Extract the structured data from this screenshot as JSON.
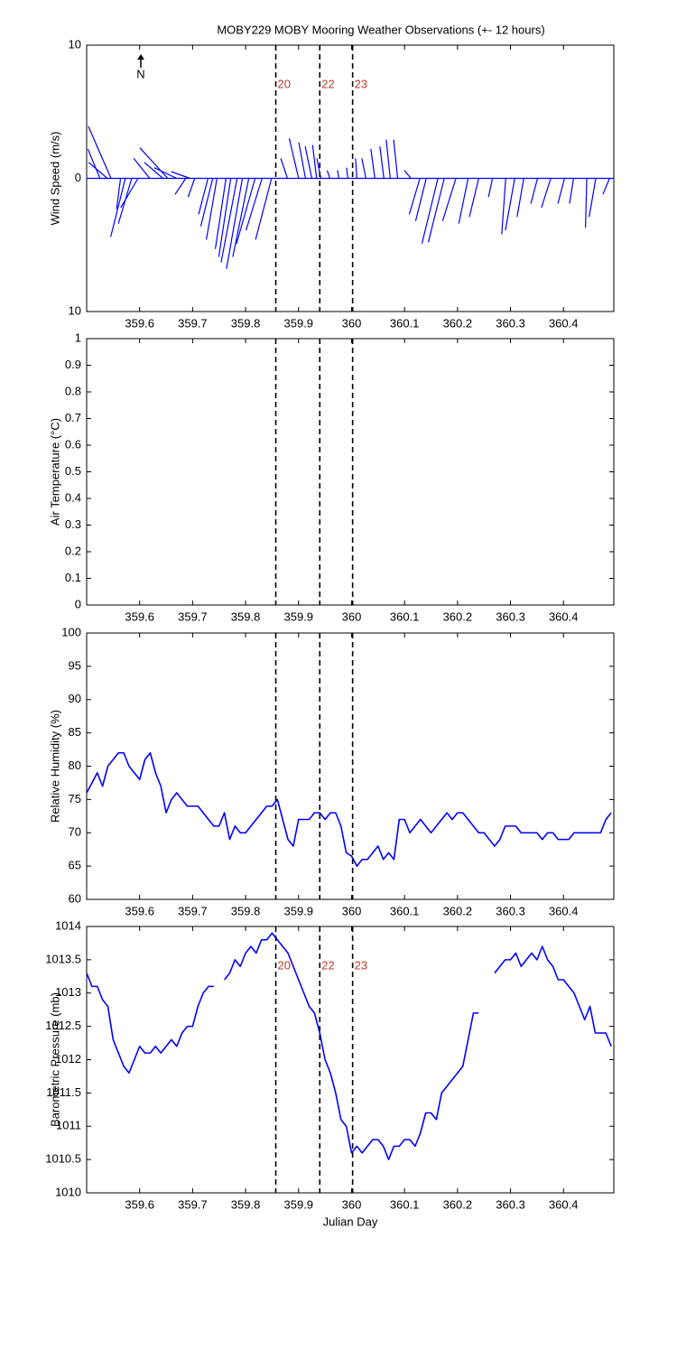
{
  "chart_data": [
    {
      "type": "stick",
      "title": "MOBY229 MOBY Mooring Weather Observations (+- 12 hours)",
      "ylabel": "Wind Speed (m/s)",
      "annotation": "N",
      "color": "#0000ff",
      "xlim": [
        359.5,
        360.495
      ],
      "xticks": [
        359.6,
        359.7,
        359.8,
        359.9,
        360,
        360.1,
        360.2,
        360.3,
        360.4
      ],
      "ylim": [
        -10,
        10
      ],
      "yticks": [
        {
          "value": -10,
          "label": "10"
        },
        0,
        10
      ],
      "vlines": [
        359.857,
        359.94,
        360.002
      ],
      "vline_labels": [
        "20",
        "22",
        "23"
      ],
      "x": [
        359.546,
        359.525,
        359.539,
        359.573,
        359.564,
        359.585,
        359.597,
        359.653,
        359.619,
        359.644,
        359.67,
        359.695,
        359.687,
        359.704,
        359.729,
        359.738,
        359.746,
        359.763,
        359.772,
        359.784,
        359.794,
        359.806,
        359.818,
        359.831,
        359.849,
        359.879,
        359.9,
        359.913,
        359.925,
        359.934,
        359.942,
        359.959,
        359.976,
        359.993,
        360.01,
        360.027,
        360.044,
        360.061,
        360.073,
        360.087,
        360.112,
        360.129,
        360.141,
        360.163,
        360.175,
        360.197,
        360.22,
        360.24,
        360.266,
        360.291,
        360.308,
        360.325,
        360.351,
        360.376,
        360.402,
        360.419,
        360.444,
        360.461,
        360.487
      ],
      "u": [
        -1.7,
        -0.9,
        -1.4,
        -1.1,
        -0.3,
        -1.0,
        -1.3,
        -2.1,
        -1.2,
        -1.4,
        -1.7,
        -1.4,
        -0.8,
        -0.5,
        -0.7,
        -0.9,
        -0.8,
        -0.8,
        -0.9,
        -1.2,
        -1.2,
        -1.2,
        -1.4,
        -1.2,
        -1.2,
        -0.5,
        -0.7,
        -0.5,
        -0.5,
        -0.3,
        -0.3,
        -0.2,
        -0.1,
        -0.1,
        -0.1,
        -0.3,
        -0.3,
        -0.3,
        -0.3,
        -0.3,
        -0.5,
        -0.8,
        -0.8,
        -1.2,
        -1.2,
        -1.0,
        -0.7,
        -0.7,
        -0.3,
        -0.3,
        -0.7,
        -0.5,
        -0.5,
        -0.7,
        -0.5,
        -0.3,
        -0.1,
        -0.5,
        -0.5
      ],
      "v": [
        3.9,
        2.2,
        1.2,
        -4.4,
        -2.3,
        -3.4,
        -2.2,
        2.3,
        1.5,
        1.2,
        0.8,
        0.5,
        -1.2,
        -1.4,
        -2.7,
        -3.6,
        -4.6,
        -5.3,
        -5.9,
        -6.3,
        -6.8,
        -5.9,
        -4.9,
        -3.9,
        -4.6,
        1.5,
        3.0,
        2.7,
        2.4,
        2.5,
        1.5,
        0.6,
        0.6,
        0.8,
        1.5,
        1.5,
        2.2,
        2.4,
        2.9,
        2.9,
        0.6,
        -2.7,
        -3.2,
        -4.9,
        -4.8,
        -3.2,
        -3.4,
        -2.9,
        -1.4,
        -4.2,
        -3.9,
        -2.9,
        -1.9,
        -2.2,
        -1.9,
        -1.9,
        -3.7,
        -2.9,
        -1.2
      ]
    },
    {
      "type": "line",
      "ylabel": "Air Temperature (°C)",
      "xlim": [
        359.5,
        360.495
      ],
      "xticks": [
        359.6,
        359.7,
        359.8,
        359.9,
        360,
        360.1,
        360.2,
        360.3,
        360.4
      ],
      "ylim": [
        0,
        1
      ],
      "yticks": [
        0,
        0.1,
        0.2,
        0.3,
        0.4,
        0.5,
        0.6,
        0.7,
        0.8,
        0.9,
        1
      ],
      "vlines": [
        359.857,
        359.94,
        360.002
      ]
    },
    {
      "type": "line",
      "ylabel": "Relative Humidity (%)",
      "color": "#0000ff",
      "xlim": [
        359.5,
        360.495
      ],
      "xticks": [
        359.6,
        359.7,
        359.8,
        359.9,
        360,
        360.1,
        360.2,
        360.3,
        360.4
      ],
      "ylim": [
        60,
        100
      ],
      "yticks": [
        60,
        65,
        70,
        75,
        80,
        85,
        90,
        95,
        100
      ],
      "vlines": [
        359.857,
        359.94,
        360.002
      ],
      "x": [
        359.5,
        359.51,
        359.52,
        359.53,
        359.54,
        359.55,
        359.56,
        359.57,
        359.58,
        359.59,
        359.6,
        359.61,
        359.62,
        359.63,
        359.64,
        359.65,
        359.66,
        359.67,
        359.68,
        359.69,
        359.7,
        359.71,
        359.72,
        359.73,
        359.74,
        359.75,
        359.76,
        359.77,
        359.78,
        359.79,
        359.8,
        359.81,
        359.82,
        359.83,
        359.84,
        359.85,
        359.86,
        359.87,
        359.88,
        359.89,
        359.9,
        359.91,
        359.92,
        359.93,
        359.94,
        359.95,
        359.96,
        359.97,
        359.98,
        359.99,
        360,
        360.01,
        360.02,
        360.03,
        360.04,
        360.05,
        360.06,
        360.07,
        360.08,
        360.09,
        360.1,
        360.11,
        360.12,
        360.13,
        360.14,
        360.15,
        360.16,
        360.17,
        360.18,
        360.19,
        360.2,
        360.21,
        360.22,
        360.23,
        360.24,
        360.25,
        360.26,
        360.27,
        360.28,
        360.29,
        360.3,
        360.31,
        360.32,
        360.33,
        360.34,
        360.35,
        360.36,
        360.37,
        360.38,
        360.39,
        360.4,
        360.41,
        360.42,
        360.43,
        360.44,
        360.45,
        360.46,
        360.47,
        360.48,
        360.49
      ],
      "values": [
        76,
        77.5,
        79,
        77,
        80,
        81,
        82,
        82,
        80,
        79,
        78,
        81,
        82,
        79,
        77,
        73,
        75,
        76,
        75,
        74,
        74,
        74,
        73,
        72,
        71,
        71,
        73,
        69,
        71,
        70,
        70,
        71,
        72,
        73,
        74,
        74,
        75,
        72,
        69,
        68,
        72,
        72,
        72,
        73,
        73,
        72,
        73,
        73,
        71,
        67,
        66.5,
        65,
        66,
        66,
        67,
        68,
        66,
        67,
        66,
        72,
        72,
        70,
        71,
        72,
        71,
        70,
        71,
        72,
        73,
        72,
        73,
        73,
        72,
        71,
        70,
        70,
        69,
        68,
        69,
        71,
        71,
        71,
        70,
        70,
        70,
        70,
        69,
        70,
        70,
        69,
        69,
        69,
        70,
        70,
        70,
        70,
        70,
        70,
        72,
        73
      ]
    },
    {
      "type": "line",
      "ylabel": "Barometric Pressure (mb)",
      "xlabel": "Julian Day",
      "color": "#0000ff",
      "xlim": [
        359.5,
        360.495
      ],
      "xticks": [
        359.6,
        359.7,
        359.8,
        359.9,
        360,
        360.1,
        360.2,
        360.3,
        360.4
      ],
      "ylim": [
        1010,
        1014
      ],
      "yticks": [
        1010,
        1010.5,
        1011,
        1011.5,
        1012,
        1012.5,
        1013,
        1013.5,
        1014
      ],
      "vlines": [
        359.857,
        359.94,
        360.002
      ],
      "vline_labels": [
        "20",
        "22",
        "23"
      ],
      "x": [
        359.5,
        359.51,
        359.52,
        359.53,
        359.54,
        359.55,
        359.56,
        359.57,
        359.58,
        359.59,
        359.6,
        359.61,
        359.62,
        359.63,
        359.64,
        359.65,
        359.66,
        359.67,
        359.68,
        359.69,
        359.7,
        359.71,
        359.72,
        359.73,
        359.74,
        359.75,
        359.76,
        359.77,
        359.78,
        359.79,
        359.8,
        359.81,
        359.82,
        359.83,
        359.84,
        359.85,
        359.86,
        359.87,
        359.88,
        359.89,
        359.9,
        359.91,
        359.92,
        359.93,
        359.94,
        359.95,
        359.96,
        359.97,
        359.98,
        359.99,
        360,
        360.01,
        360.02,
        360.03,
        360.04,
        360.05,
        360.06,
        360.07,
        360.08,
        360.09,
        360.1,
        360.11,
        360.12,
        360.13,
        360.14,
        360.15,
        360.16,
        360.17,
        360.18,
        360.19,
        360.2,
        360.21,
        360.22,
        360.23,
        360.24,
        360.25,
        360.26,
        360.27,
        360.28,
        360.29,
        360.3,
        360.31,
        360.32,
        360.33,
        360.34,
        360.35,
        360.36,
        360.37,
        360.38,
        360.39,
        360.4,
        360.41,
        360.42,
        360.43,
        360.44,
        360.45,
        360.46,
        360.47,
        360.48,
        360.49
      ],
      "values": [
        1013.3,
        1013.1,
        1013.1,
        1012.9,
        1012.8,
        1012.3,
        1012.1,
        1011.9,
        1011.8,
        1012.0,
        1012.2,
        1012.1,
        1012.1,
        1012.2,
        1012.1,
        1012.2,
        1012.3,
        1012.2,
        1012.4,
        1012.5,
        1012.5,
        1012.8,
        1013.0,
        1013.1,
        1013.1,
        null,
        1013.2,
        1013.3,
        1013.5,
        1013.4,
        1013.6,
        1013.7,
        1013.6,
        1013.8,
        1013.8,
        1013.9,
        1013.8,
        1013.7,
        1013.6,
        1013.4,
        1013.2,
        1013.0,
        1012.8,
        1012.7,
        1012.4,
        1012.0,
        1011.8,
        1011.5,
        1011.1,
        1011.0,
        1010.6,
        1010.7,
        1010.6,
        1010.7,
        1010.8,
        1010.8,
        1010.7,
        1010.5,
        1010.7,
        1010.7,
        1010.8,
        1010.8,
        1010.7,
        1010.9,
        1011.2,
        1011.2,
        1011.1,
        1011.5,
        1011.6,
        1011.7,
        1011.8,
        1011.9,
        1012.3,
        1012.7,
        1012.7,
        null,
        null,
        1013.3,
        1013.4,
        1013.5,
        1013.5,
        1013.6,
        1013.4,
        1013.5,
        1013.6,
        1013.5,
        1013.7,
        1013.5,
        1013.4,
        1013.2,
        1013.2,
        1013.1,
        1013.0,
        1012.8,
        1012.6,
        1012.8,
        1012.4,
        1012.4,
        1012.4,
        1012.2
      ]
    }
  ]
}
